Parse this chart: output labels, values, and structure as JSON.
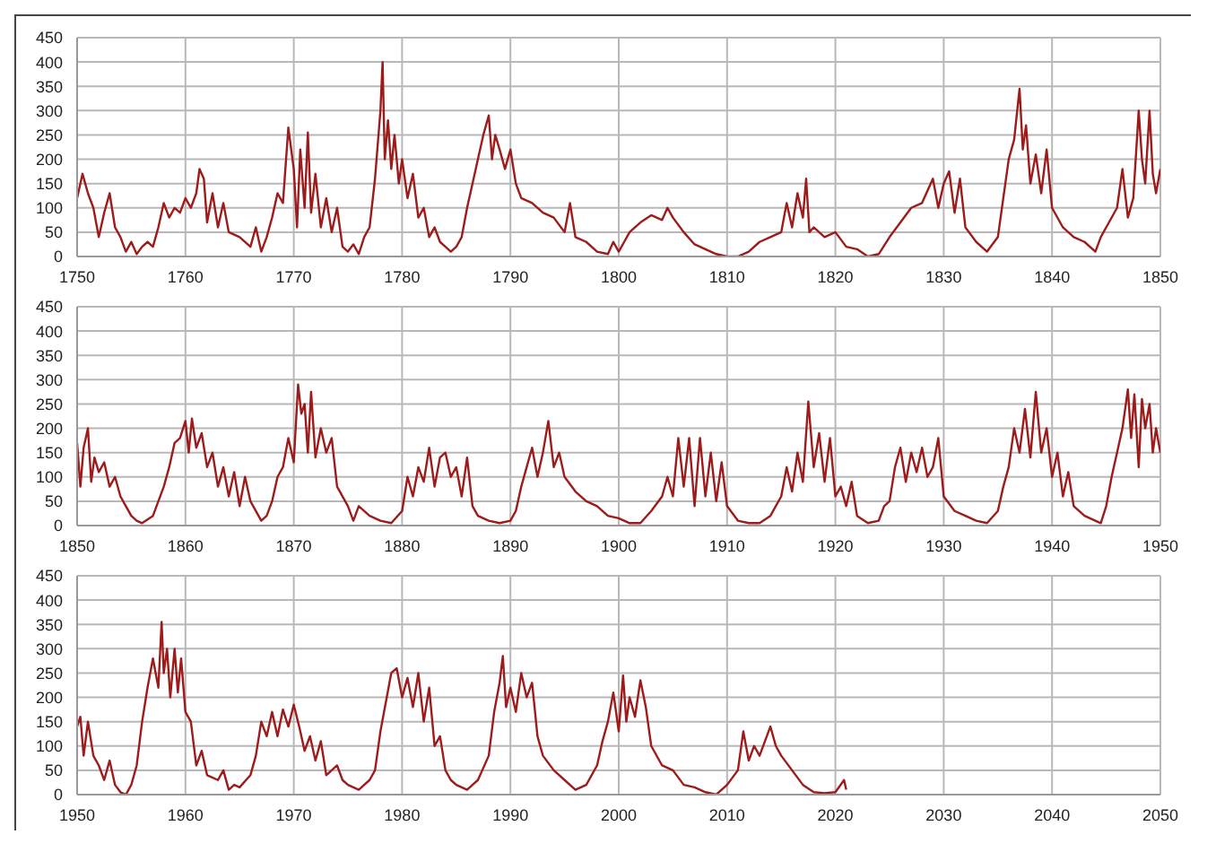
{
  "chart_data": [
    {
      "type": "line",
      "color": "#9e1b1b",
      "xlim": [
        1750,
        1850
      ],
      "xticks": [
        1750,
        1760,
        1770,
        1780,
        1790,
        1800,
        1810,
        1820,
        1830,
        1840,
        1850
      ],
      "ylim": [
        0,
        450
      ],
      "yticks": [
        0,
        50,
        100,
        150,
        200,
        250,
        300,
        350,
        400,
        450
      ],
      "grid": true,
      "x": [
        1750,
        1750.5,
        1751,
        1751.5,
        1752,
        1752.5,
        1753,
        1753.5,
        1754,
        1754.5,
        1755,
        1755.5,
        1756,
        1756.5,
        1757,
        1757.5,
        1758,
        1758.5,
        1759,
        1759.5,
        1760,
        1760.5,
        1761,
        1761.3,
        1761.7,
        1762,
        1762.5,
        1763,
        1763.5,
        1764,
        1765,
        1766,
        1766.5,
        1767,
        1767.5,
        1768,
        1768.5,
        1769,
        1769.5,
        1770,
        1770.3,
        1770.6,
        1771,
        1771.3,
        1771.6,
        1772,
        1772.5,
        1773,
        1773.5,
        1774,
        1774.5,
        1775,
        1775.5,
        1776,
        1776.5,
        1777,
        1777.5,
        1778,
        1778.2,
        1778.4,
        1778.7,
        1779,
        1779.3,
        1779.7,
        1780,
        1780.5,
        1781,
        1781.5,
        1782,
        1782.5,
        1783,
        1783.5,
        1784,
        1784.5,
        1785,
        1785.5,
        1786,
        1786.5,
        1787,
        1787.5,
        1788,
        1788.3,
        1788.6,
        1789,
        1789.5,
        1790,
        1790.5,
        1791,
        1792,
        1793,
        1794,
        1795,
        1795.5,
        1796,
        1797,
        1798,
        1799,
        1799.5,
        1800,
        1800.5,
        1801,
        1802,
        1803,
        1804,
        1804.5,
        1805,
        1806,
        1807,
        1808,
        1809,
        1810,
        1811,
        1812,
        1813,
        1814,
        1815,
        1815.5,
        1816,
        1816.5,
        1817,
        1817.3,
        1817.6,
        1818,
        1819,
        1820,
        1821,
        1822,
        1823,
        1824,
        1825,
        1826,
        1827,
        1828,
        1829,
        1829.5,
        1830,
        1830.5,
        1831,
        1831.5,
        1832,
        1833,
        1834,
        1835,
        1835.5,
        1836,
        1836.5,
        1837,
        1837.3,
        1837.6,
        1838,
        1838.5,
        1839,
        1839.5,
        1840,
        1841,
        1842,
        1843,
        1844,
        1844.5,
        1845,
        1846,
        1846.5,
        1847,
        1847.5,
        1848,
        1848.3,
        1848.6,
        1849,
        1849.3,
        1849.6,
        1850
      ],
      "values": [
        120,
        170,
        130,
        100,
        40,
        90,
        130,
        60,
        40,
        10,
        30,
        5,
        20,
        30,
        20,
        60,
        110,
        80,
        100,
        90,
        120,
        100,
        130,
        180,
        160,
        70,
        130,
        60,
        110,
        50,
        40,
        20,
        60,
        10,
        40,
        80,
        130,
        110,
        265,
        180,
        60,
        220,
        100,
        255,
        90,
        170,
        60,
        120,
        50,
        100,
        20,
        10,
        25,
        5,
        40,
        60,
        160,
        300,
        400,
        200,
        280,
        180,
        250,
        150,
        200,
        120,
        170,
        80,
        100,
        40,
        60,
        30,
        20,
        10,
        20,
        40,
        100,
        150,
        200,
        250,
        290,
        200,
        250,
        220,
        180,
        220,
        150,
        120,
        110,
        90,
        80,
        50,
        110,
        40,
        30,
        10,
        5,
        30,
        10,
        30,
        50,
        70,
        85,
        75,
        100,
        80,
        50,
        25,
        15,
        5,
        0,
        0,
        10,
        30,
        40,
        50,
        110,
        60,
        130,
        80,
        160,
        50,
        60,
        40,
        50,
        20,
        15,
        0,
        5,
        40,
        70,
        100,
        110,
        160,
        100,
        150,
        175,
        90,
        160,
        60,
        30,
        10,
        40,
        120,
        200,
        240,
        345,
        220,
        270,
        150,
        210,
        130,
        220,
        100,
        60,
        40,
        30,
        10,
        40,
        60,
        100,
        180,
        80,
        120,
        300,
        200,
        150,
        300,
        170,
        130,
        180
      ]
    },
    {
      "type": "line",
      "color": "#9e1b1b",
      "xlim": [
        1850,
        1950
      ],
      "xticks": [
        1850,
        1860,
        1870,
        1880,
        1890,
        1900,
        1910,
        1920,
        1930,
        1940,
        1950
      ],
      "ylim": [
        0,
        450
      ],
      "yticks": [
        0,
        50,
        100,
        150,
        200,
        250,
        300,
        350,
        400,
        450
      ],
      "grid": true,
      "x": [
        1850,
        1850.3,
        1850.6,
        1851,
        1851.3,
        1851.6,
        1852,
        1852.5,
        1853,
        1853.5,
        1854,
        1854.5,
        1855,
        1855.5,
        1856,
        1857,
        1858,
        1858.5,
        1859,
        1859.5,
        1860,
        1860.3,
        1860.6,
        1861,
        1861.5,
        1862,
        1862.5,
        1863,
        1863.5,
        1864,
        1864.5,
        1865,
        1865.5,
        1866,
        1867,
        1867.5,
        1868,
        1868.5,
        1869,
        1869.5,
        1870,
        1870.4,
        1870.7,
        1871,
        1871.3,
        1871.6,
        1872,
        1872.5,
        1873,
        1873.5,
        1874,
        1875,
        1875.5,
        1876,
        1877,
        1878,
        1879,
        1880,
        1880.5,
        1881,
        1881.5,
        1882,
        1882.5,
        1883,
        1883.5,
        1884,
        1884.5,
        1885,
        1885.5,
        1886,
        1886.5,
        1887,
        1888,
        1889,
        1890,
        1890.5,
        1891,
        1891.5,
        1892,
        1892.5,
        1893,
        1893.5,
        1894,
        1894.5,
        1895,
        1896,
        1897,
        1898,
        1899,
        1900,
        1901,
        1902,
        1903,
        1904,
        1904.5,
        1905,
        1905.5,
        1906,
        1906.5,
        1907,
        1907.5,
        1908,
        1908.5,
        1909,
        1909.5,
        1910,
        1911,
        1912,
        1913,
        1914,
        1915,
        1915.5,
        1916,
        1916.5,
        1917,
        1917.5,
        1918,
        1918.5,
        1919,
        1919.5,
        1920,
        1920.5,
        1921,
        1921.5,
        1922,
        1923,
        1924,
        1924.5,
        1925,
        1925.5,
        1926,
        1926.5,
        1927,
        1927.5,
        1928,
        1928.5,
        1929,
        1929.5,
        1930,
        1931,
        1932,
        1933,
        1934,
        1935,
        1935.5,
        1936,
        1936.5,
        1937,
        1937.5,
        1938,
        1938.5,
        1939,
        1939.5,
        1940,
        1940.5,
        1941,
        1941.5,
        1942,
        1943,
        1944,
        1944.5,
        1945,
        1945.5,
        1946,
        1946.5,
        1947,
        1947.3,
        1947.6,
        1948,
        1948.3,
        1948.6,
        1949,
        1949.3,
        1949.6,
        1950
      ],
      "values": [
        170,
        80,
        160,
        200,
        90,
        140,
        110,
        130,
        80,
        100,
        60,
        40,
        20,
        10,
        5,
        20,
        80,
        120,
        170,
        180,
        215,
        150,
        220,
        160,
        190,
        120,
        150,
        80,
        120,
        60,
        110,
        40,
        100,
        50,
        10,
        20,
        50,
        100,
        120,
        180,
        130,
        290,
        230,
        250,
        150,
        275,
        140,
        200,
        150,
        180,
        80,
        40,
        10,
        40,
        20,
        10,
        5,
        30,
        100,
        60,
        120,
        90,
        160,
        80,
        140,
        150,
        100,
        120,
        60,
        140,
        40,
        20,
        10,
        5,
        10,
        30,
        80,
        120,
        160,
        100,
        150,
        215,
        120,
        150,
        100,
        70,
        50,
        40,
        20,
        15,
        5,
        5,
        30,
        60,
        100,
        60,
        180,
        80,
        180,
        40,
        180,
        60,
        150,
        50,
        130,
        40,
        10,
        5,
        5,
        20,
        60,
        120,
        70,
        150,
        90,
        255,
        120,
        190,
        90,
        180,
        60,
        80,
        40,
        90,
        20,
        5,
        10,
        40,
        50,
        120,
        160,
        90,
        150,
        110,
        160,
        100,
        120,
        180,
        60,
        30,
        20,
        10,
        5,
        30,
        80,
        120,
        200,
        150,
        240,
        140,
        275,
        150,
        200,
        100,
        150,
        60,
        110,
        40,
        20,
        10,
        5,
        40,
        100,
        150,
        200,
        280,
        180,
        270,
        120,
        260,
        200,
        250,
        150,
        200,
        150
      ]
    },
    {
      "type": "line",
      "color": "#9e1b1b",
      "xlim": [
        1950,
        2050
      ],
      "xticks": [
        1950,
        1960,
        1970,
        1980,
        1990,
        2000,
        2010,
        2020,
        2030,
        2040,
        2050
      ],
      "ylim": [
        0,
        450
      ],
      "yticks": [
        0,
        50,
        100,
        150,
        200,
        250,
        300,
        350,
        400,
        450
      ],
      "grid": true,
      "x": [
        1950,
        1950.3,
        1950.6,
        1951,
        1951.5,
        1952,
        1952.5,
        1953,
        1953.5,
        1954,
        1954.5,
        1955,
        1955.5,
        1956,
        1956.5,
        1957,
        1957.5,
        1957.8,
        1958,
        1958.3,
        1958.6,
        1959,
        1959.3,
        1959.6,
        1960,
        1960.5,
        1961,
        1961.5,
        1962,
        1963,
        1963.5,
        1964,
        1964.5,
        1965,
        1966,
        1966.5,
        1967,
        1967.5,
        1968,
        1968.5,
        1969,
        1969.5,
        1970,
        1970.5,
        1971,
        1971.5,
        1972,
        1972.5,
        1973,
        1974,
        1974.5,
        1975,
        1976,
        1976.5,
        1977,
        1977.5,
        1978,
        1978.5,
        1979,
        1979.5,
        1980,
        1980.5,
        1981,
        1981.5,
        1982,
        1982.5,
        1983,
        1983.5,
        1984,
        1984.5,
        1985,
        1986,
        1986.5,
        1987,
        1988,
        1988.5,
        1989,
        1989.3,
        1989.6,
        1990,
        1990.5,
        1991,
        1991.5,
        1992,
        1992.5,
        1993,
        1994,
        1995,
        1996,
        1997,
        1998,
        1998.5,
        1999,
        1999.5,
        2000,
        2000.4,
        2000.7,
        2001,
        2001.5,
        2002,
        2002.5,
        2003,
        2004,
        2005,
        2006,
        2007,
        2008,
        2009,
        2010,
        2011,
        2011.5,
        2012,
        2012.5,
        2013,
        2013.5,
        2014,
        2014.5,
        2015,
        2016,
        2017,
        2018,
        2019,
        2020,
        2020.8,
        2021
      ],
      "values": [
        140,
        160,
        80,
        150,
        80,
        60,
        30,
        70,
        20,
        5,
        0,
        20,
        60,
        150,
        220,
        280,
        220,
        355,
        250,
        300,
        200,
        300,
        210,
        280,
        170,
        150,
        60,
        90,
        40,
        30,
        50,
        10,
        20,
        15,
        40,
        80,
        150,
        120,
        170,
        120,
        175,
        140,
        185,
        140,
        90,
        120,
        70,
        110,
        40,
        60,
        30,
        20,
        10,
        20,
        30,
        50,
        130,
        190,
        250,
        260,
        200,
        240,
        180,
        250,
        150,
        220,
        100,
        120,
        50,
        30,
        20,
        10,
        20,
        30,
        80,
        170,
        230,
        285,
        180,
        220,
        170,
        250,
        200,
        230,
        120,
        80,
        50,
        30,
        10,
        20,
        60,
        110,
        150,
        210,
        130,
        245,
        150,
        200,
        160,
        235,
        180,
        100,
        60,
        50,
        20,
        15,
        5,
        0,
        20,
        50,
        130,
        70,
        100,
        80,
        110,
        140,
        100,
        80,
        50,
        20,
        5,
        3,
        5,
        30,
        10
      ]
    }
  ]
}
